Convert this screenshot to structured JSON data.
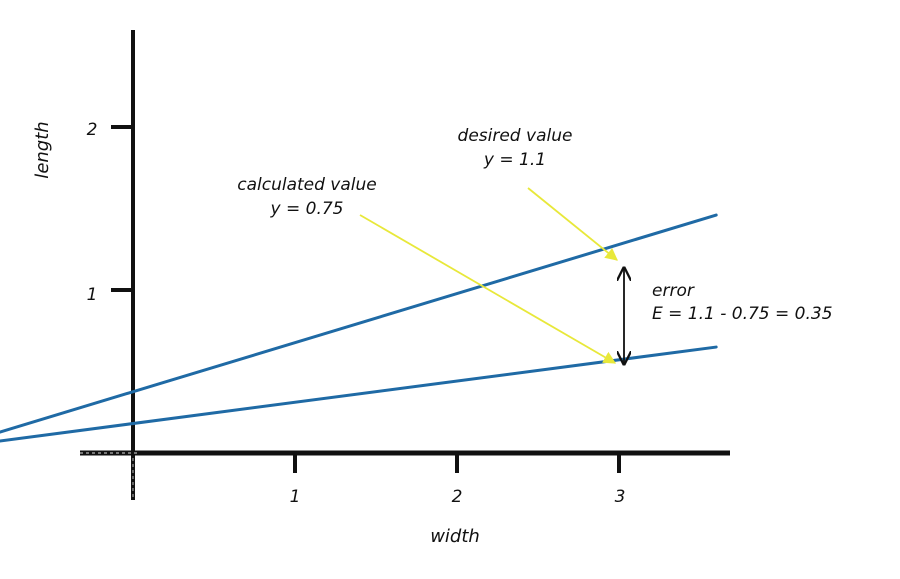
{
  "chart_data": {
    "type": "line",
    "xlabel": "width",
    "ylabel": "length",
    "xlim": [
      -0.95,
      3.6
    ],
    "ylim": [
      -0.25,
      2.65
    ],
    "x_ticks": [
      {
        "value": 1,
        "label": "1"
      },
      {
        "value": 2,
        "label": "2"
      },
      {
        "value": 3,
        "label": "3"
      }
    ],
    "y_ticks": [
      {
        "value": 1,
        "label": "1"
      },
      {
        "value": 2,
        "label": "2"
      }
    ],
    "series": [
      {
        "x": [
          -0.85,
          3.6
        ],
        "y": [
          0.12,
          1.46
        ]
      },
      {
        "x": [
          -0.85,
          3.6
        ],
        "y": [
          0.07,
          0.65
        ]
      }
    ],
    "line_color": "#1f6aa5",
    "annotations": {
      "desired": {
        "label": "desired value",
        "equation": "y = 1.1",
        "x": 3,
        "y": 1.1
      },
      "calculated": {
        "label": "calculated value",
        "equation": "y = 0.75",
        "x": 3,
        "y": 0.55
      },
      "error": {
        "label": "error",
        "equation": "E = 1.1 - 0.75 = 0.35"
      }
    },
    "arrow_color": "#e8e83a"
  }
}
